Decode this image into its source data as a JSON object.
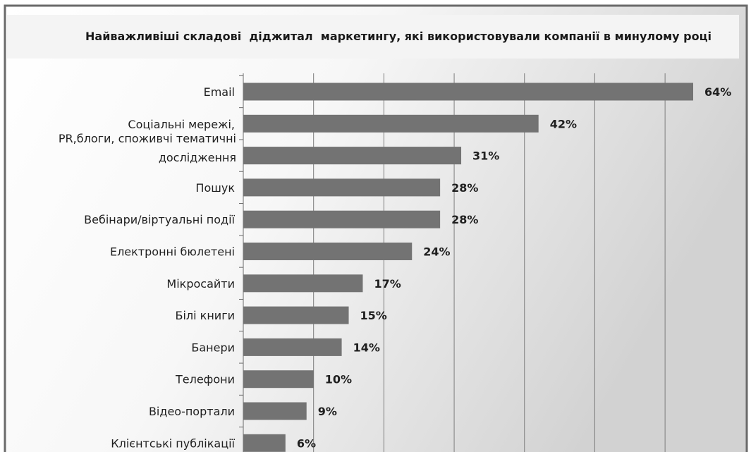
{
  "chart_data": {
    "type": "bar",
    "orientation": "horizontal",
    "title": "Найважливіші складові  діджитал  маркетингу, які використовували компанії в минулому році",
    "xlabel": "",
    "ylabel": "",
    "xlim": [
      0,
      70
    ],
    "grid": true,
    "legend": "none",
    "bar_color": "#737373",
    "categories": [
      "Email",
      "Соціальні мережі,",
      "PR,блоги, споживчі тематичні дослідження",
      "Пошук",
      "Вебінари/віртуальні події",
      "Електронні бюлетені",
      "Мікросайти",
      "Білі книги",
      "Банери",
      "Телефони",
      "Відео-портали",
      "Клієнтські публікації"
    ],
    "values": [
      64,
      42,
      31,
      28,
      28,
      24,
      17,
      15,
      14,
      10,
      9,
      6
    ],
    "value_labels": [
      "64%",
      "42%",
      "31%",
      "28%",
      "28%",
      "24%",
      "17%",
      "15%",
      "14%",
      "10%",
      "9%",
      "6%"
    ]
  }
}
